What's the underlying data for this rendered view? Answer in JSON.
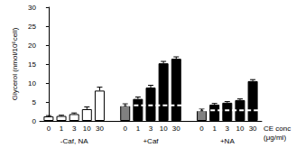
{
  "chart_data": {
    "type": "bar",
    "y_label": "Glycerol (nmol/10⁶cell)",
    "x_label": "CE conc\n(μg/ml)",
    "ylim": [
      0,
      30
    ],
    "yticks": [
      0,
      5,
      10,
      15,
      20,
      25,
      30
    ],
    "grid": false,
    "groups": [
      {
        "label": "-Caf, NA",
        "categories": [
          "0",
          "1",
          "3",
          "10",
          "30"
        ],
        "values": [
          1.2,
          1.3,
          1.8,
          3.1,
          8.0
        ],
        "errors": [
          0.2,
          0.2,
          0.3,
          0.6,
          0.9
        ],
        "colors": [
          "#ffffff",
          "#ffffff",
          "#ffffff",
          "#ffffff",
          "#ffffff"
        ]
      },
      {
        "label": "+Caf",
        "categories": [
          "0",
          "1",
          "3",
          "10",
          "30"
        ],
        "values": [
          4.1,
          5.8,
          8.8,
          15.2,
          16.4
        ],
        "errors": [
          0.4,
          0.5,
          0.6,
          0.5,
          0.5
        ],
        "colors": [
          "#808080",
          "#000000",
          "#000000",
          "#000000",
          "#000000"
        ],
        "reference": 4.1
      },
      {
        "label": "+NA",
        "categories": [
          "0",
          "1",
          "3",
          "10",
          "30"
        ],
        "values": [
          2.8,
          4.3,
          4.8,
          5.5,
          10.5
        ],
        "errors": [
          0.3,
          0.3,
          0.3,
          0.3,
          0.4
        ],
        "colors": [
          "#808080",
          "#000000",
          "#000000",
          "#000000",
          "#000000"
        ],
        "reference": 2.8
      }
    ]
  }
}
